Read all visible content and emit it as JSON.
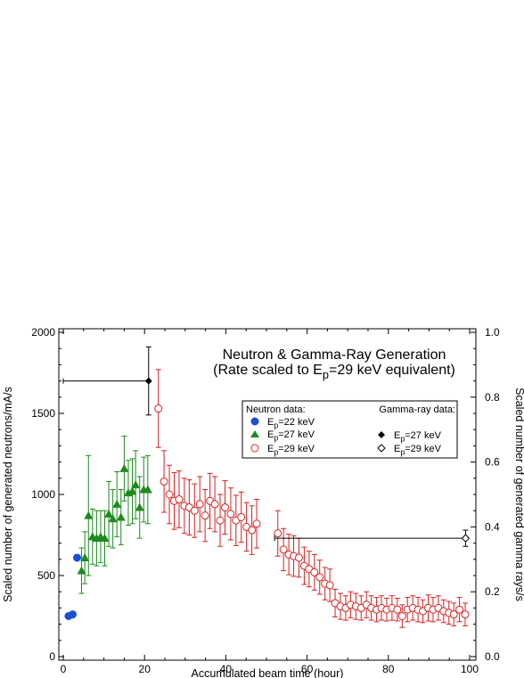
{
  "chart_data": {
    "type": "scatter",
    "title": "Neutron & Gamma-Ray Generation",
    "subtitle": "(Rate scaled to Ep=29 keV equivalent)",
    "xlabel": "Accumulated beam time (hour)",
    "ylabel": "Scaled number of generated neutrons/mA/s",
    "ylabel_right": "Scaled number of generated gamma rays/s",
    "xlim": [
      0,
      100
    ],
    "ylim": [
      0,
      2000
    ],
    "ylim_right": [
      0.0,
      1.0
    ],
    "x_ticks": [
      "0",
      "20",
      "40",
      "60",
      "80",
      "100"
    ],
    "y_ticks": [
      "0",
      "500",
      "1000",
      "1500",
      "2000"
    ],
    "y_ticks_right": [
      "0.0",
      "0.2",
      "0.4",
      "0.6",
      "0.8",
      "1.0"
    ],
    "grid": false,
    "legend_placement": "right",
    "legend": {
      "neutron_header": "Neutron data:",
      "gamma_header": "Gamma-ray data:",
      "n22": "Ep=22 keV",
      "n27": "Ep=27 keV",
      "n29": "Ep=29 keV",
      "g27": "Ep=27 keV",
      "g29": "Ep=29 keV"
    },
    "series": [
      {
        "name": "Neutron Ep=22 keV",
        "color": "#1a4fd6",
        "marker": "filled-circle",
        "points": [
          {
            "x": 1.3,
            "y": 250
          },
          {
            "x": 2.3,
            "y": 260
          },
          {
            "x": 3.4,
            "y": 610
          }
        ]
      },
      {
        "name": "Neutron Ep=27 keV",
        "color": "#1e8a1e",
        "marker": "filled-triangle",
        "points": [
          {
            "x": 4.5,
            "y": 530,
            "err": 140
          },
          {
            "x": 5.3,
            "y": 610,
            "err": 160
          },
          {
            "x": 6.2,
            "y": 870,
            "err": 370
          },
          {
            "x": 7.2,
            "y": 740,
            "err": 170
          },
          {
            "x": 8.2,
            "y": 730,
            "err": 170
          },
          {
            "x": 9.2,
            "y": 740,
            "err": 160
          },
          {
            "x": 10.2,
            "y": 730,
            "err": 170
          },
          {
            "x": 11.2,
            "y": 880,
            "err": 200
          },
          {
            "x": 12.2,
            "y": 850,
            "err": 180
          },
          {
            "x": 13.2,
            "y": 940,
            "err": 200
          },
          {
            "x": 14.2,
            "y": 860,
            "err": 170
          },
          {
            "x": 15.0,
            "y": 1160,
            "err": 200
          },
          {
            "x": 16.0,
            "y": 1010,
            "err": 200
          },
          {
            "x": 17.0,
            "y": 1020,
            "err": 200
          },
          {
            "x": 17.8,
            "y": 1060,
            "err": 210
          },
          {
            "x": 18.8,
            "y": 920,
            "err": 190
          },
          {
            "x": 19.8,
            "y": 1030,
            "err": 200
          },
          {
            "x": 20.8,
            "y": 1030,
            "err": 210
          }
        ]
      },
      {
        "name": "Neutron Ep=29 keV",
        "color": "#d42020",
        "marker": "open-circle",
        "points": [
          {
            "x": 23.4,
            "y": 1530,
            "err": 240
          },
          {
            "x": 24.8,
            "y": 1080,
            "err": 190
          },
          {
            "x": 26.1,
            "y": 1000,
            "err": 180
          },
          {
            "x": 27.3,
            "y": 960,
            "err": 175
          },
          {
            "x": 28.5,
            "y": 970,
            "err": 175
          },
          {
            "x": 29.8,
            "y": 930,
            "err": 170
          },
          {
            "x": 31.0,
            "y": 920,
            "err": 170
          },
          {
            "x": 32.3,
            "y": 900,
            "err": 165
          },
          {
            "x": 33.6,
            "y": 940,
            "err": 170
          },
          {
            "x": 34.9,
            "y": 870,
            "err": 160
          },
          {
            "x": 36.1,
            "y": 960,
            "err": 170
          },
          {
            "x": 37.3,
            "y": 940,
            "err": 170
          },
          {
            "x": 38.6,
            "y": 840,
            "err": 160
          },
          {
            "x": 39.8,
            "y": 920,
            "err": 165
          },
          {
            "x": 41.2,
            "y": 880,
            "err": 160
          },
          {
            "x": 42.5,
            "y": 840,
            "err": 155
          },
          {
            "x": 43.8,
            "y": 860,
            "err": 155
          },
          {
            "x": 45.1,
            "y": 800,
            "err": 150
          },
          {
            "x": 46.4,
            "y": 780,
            "err": 150
          },
          {
            "x": 47.6,
            "y": 820,
            "err": 150
          },
          {
            "x": 52.8,
            "y": 760,
            "err": 140
          },
          {
            "x": 54.2,
            "y": 660,
            "err": 130
          },
          {
            "x": 55.5,
            "y": 630,
            "err": 125
          },
          {
            "x": 56.7,
            "y": 620,
            "err": 125
          },
          {
            "x": 58.0,
            "y": 610,
            "err": 120
          },
          {
            "x": 59.3,
            "y": 560,
            "err": 115
          },
          {
            "x": 60.5,
            "y": 540,
            "err": 110
          },
          {
            "x": 61.8,
            "y": 520,
            "err": 110
          },
          {
            "x": 63.1,
            "y": 490,
            "err": 105
          },
          {
            "x": 64.4,
            "y": 450,
            "err": 100
          },
          {
            "x": 65.6,
            "y": 440,
            "err": 100
          },
          {
            "x": 66.9,
            "y": 330,
            "err": 85
          },
          {
            "x": 68.2,
            "y": 310,
            "err": 80
          },
          {
            "x": 69.5,
            "y": 300,
            "err": 75
          },
          {
            "x": 70.7,
            "y": 320,
            "err": 80
          },
          {
            "x": 72.0,
            "y": 310,
            "err": 80
          },
          {
            "x": 73.3,
            "y": 300,
            "err": 75
          },
          {
            "x": 74.6,
            "y": 320,
            "err": 80
          },
          {
            "x": 75.8,
            "y": 300,
            "err": 75
          },
          {
            "x": 77.1,
            "y": 290,
            "err": 75
          },
          {
            "x": 78.3,
            "y": 300,
            "err": 75
          },
          {
            "x": 79.6,
            "y": 290,
            "err": 70
          },
          {
            "x": 80.9,
            "y": 300,
            "err": 75
          },
          {
            "x": 82.2,
            "y": 290,
            "err": 70
          },
          {
            "x": 83.4,
            "y": 250,
            "err": 70
          },
          {
            "x": 84.7,
            "y": 290,
            "err": 75
          },
          {
            "x": 86.0,
            "y": 300,
            "err": 75
          },
          {
            "x": 87.3,
            "y": 290,
            "err": 75
          },
          {
            "x": 88.5,
            "y": 280,
            "err": 70
          },
          {
            "x": 89.8,
            "y": 300,
            "err": 80
          },
          {
            "x": 91.0,
            "y": 290,
            "err": 75
          },
          {
            "x": 92.3,
            "y": 300,
            "err": 75
          },
          {
            "x": 93.6,
            "y": 280,
            "err": 70
          },
          {
            "x": 94.9,
            "y": 270,
            "err": 70
          },
          {
            "x": 96.1,
            "y": 260,
            "err": 70
          },
          {
            "x": 97.5,
            "y": 290,
            "err": 75
          },
          {
            "x": 98.9,
            "y": 260,
            "err": 70
          }
        ]
      },
      {
        "name": "Gamma-ray Ep=27 keV",
        "color": "#000000",
        "marker": "filled-diamond",
        "axis": "right",
        "points": [
          {
            "x": 21.0,
            "y": 0.85,
            "yerr": 0.105,
            "xmin": 0,
            "xmax": 21.0
          }
        ]
      },
      {
        "name": "Gamma-ray Ep=29 keV",
        "color": "#000000",
        "marker": "open-diamond",
        "axis": "right",
        "points": [
          {
            "x": 99.0,
            "y": 0.365,
            "yerr": 0.025,
            "xmin": 52.0,
            "xmax": 99.0
          }
        ]
      }
    ]
  }
}
